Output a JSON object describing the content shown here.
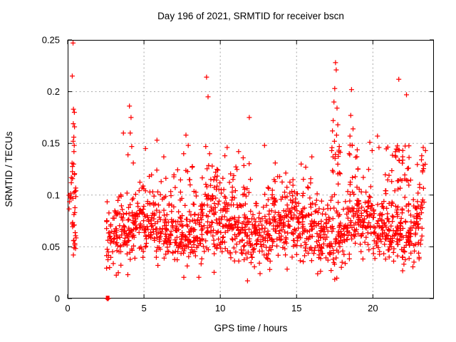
{
  "page": {
    "background": "#ffffff"
  },
  "chart_data": {
    "type": "scatter",
    "title": "Day 196 of 2021, SRMTID for receiver bscn",
    "xlabel": "GPS time / hours",
    "ylabel": "SRMTID / TECUs",
    "xlim": [
      0,
      24
    ],
    "ylim": [
      0,
      0.25
    ],
    "xticks": [
      0,
      5,
      10,
      15,
      20
    ],
    "xtick_labels": [
      "0",
      "5",
      "10",
      "15",
      "20"
    ],
    "yticks": [
      0,
      0.05,
      0.1,
      0.15,
      0.2,
      0.25
    ],
    "ytick_labels": [
      "0",
      "0.05",
      "0.1",
      "0.15",
      "0.2",
      "0.25"
    ],
    "grid": {
      "show": true,
      "color": "#a8a8a8",
      "dash": [
        2,
        3.5
      ]
    },
    "axis_color": "#000000",
    "marker": {
      "shape": "plus",
      "color": "#ff0000",
      "size": 7,
      "stroke_width": 1.25
    },
    "points_notable": [
      [
        0.35,
        0.247
      ],
      [
        0.3,
        0.215
      ],
      [
        0.38,
        0.183
      ],
      [
        0.44,
        0.18
      ],
      [
        0.37,
        0.169
      ],
      [
        0.45,
        0.166
      ],
      [
        0.4,
        0.156
      ],
      [
        0.36,
        0.152
      ],
      [
        0.43,
        0.148
      ],
      [
        0.41,
        0.142
      ],
      [
        0.39,
        0.13
      ],
      [
        3.65,
        0.16
      ],
      [
        4.05,
        0.186
      ],
      [
        4.15,
        0.175
      ],
      [
        4.1,
        0.16
      ],
      [
        4.2,
        0.147
      ],
      [
        3.95,
        0.139
      ],
      [
        4.3,
        0.131
      ],
      [
        5.1,
        0.145
      ],
      [
        5.85,
        0.153
      ],
      [
        6.3,
        0.137
      ],
      [
        7.75,
        0.158
      ],
      [
        7.9,
        0.148
      ],
      [
        7.6,
        0.14
      ],
      [
        9.1,
        0.214
      ],
      [
        9.2,
        0.195
      ],
      [
        9.05,
        0.147
      ],
      [
        9.3,
        0.14
      ],
      [
        10.45,
        0.146
      ],
      [
        10.3,
        0.138
      ],
      [
        11.2,
        0.142
      ],
      [
        11.5,
        0.136
      ],
      [
        11.9,
        0.175
      ],
      [
        12.9,
        0.148
      ],
      [
        13.6,
        0.131
      ],
      [
        15.3,
        0.13
      ],
      [
        15.6,
        0.127
      ],
      [
        16.0,
        0.137
      ],
      [
        17.55,
        0.228
      ],
      [
        17.6,
        0.221
      ],
      [
        17.5,
        0.203
      ],
      [
        17.45,
        0.19
      ],
      [
        17.65,
        0.184
      ],
      [
        17.4,
        0.172
      ],
      [
        17.7,
        0.168
      ],
      [
        17.35,
        0.162
      ],
      [
        17.62,
        0.158
      ],
      [
        17.48,
        0.152
      ],
      [
        17.8,
        0.147
      ],
      [
        17.3,
        0.143
      ],
      [
        18.6,
        0.202
      ],
      [
        18.55,
        0.177
      ],
      [
        18.7,
        0.164
      ],
      [
        18.5,
        0.157
      ],
      [
        18.65,
        0.148
      ],
      [
        19.8,
        0.151
      ],
      [
        19.95,
        0.143
      ],
      [
        20.3,
        0.157
      ],
      [
        20.4,
        0.146
      ],
      [
        21.7,
        0.212
      ],
      [
        22.2,
        0.197
      ],
      [
        23.3,
        0.146
      ],
      [
        23.45,
        0.143
      ],
      [
        23.2,
        0.138
      ]
    ],
    "points_zero": [
      [
        2.58,
        0
      ],
      [
        2.61,
        0
      ],
      [
        2.63,
        0
      ],
      [
        2.66,
        0
      ]
    ],
    "cluster_boxes": [
      {
        "x0": 0.28,
        "x1": 0.55,
        "y0": 0.042,
        "y1": 0.132,
        "n": 30
      },
      {
        "x0": 0.05,
        "x1": 0.25,
        "y0": 0.085,
        "y1": 0.125,
        "n": 8
      },
      {
        "x0": 4.6,
        "x1": 8.2,
        "y0": 0.098,
        "y1": 0.128,
        "n": 22
      },
      {
        "x0": 9.0,
        "x1": 12.2,
        "y0": 0.1,
        "y1": 0.132,
        "n": 28
      },
      {
        "x0": 13.0,
        "x1": 15.8,
        "y0": 0.096,
        "y1": 0.124,
        "n": 18
      },
      {
        "x0": 17.3,
        "x1": 17.95,
        "y0": 0.115,
        "y1": 0.158,
        "n": 14
      },
      {
        "x0": 18.4,
        "x1": 19.1,
        "y0": 0.11,
        "y1": 0.15,
        "n": 12
      },
      {
        "x0": 20.8,
        "x1": 22.5,
        "y0": 0.1,
        "y1": 0.148,
        "n": 40
      },
      {
        "x0": 22.9,
        "x1": 23.45,
        "y0": 0.092,
        "y1": 0.14,
        "n": 14
      }
    ],
    "dense_band_model": {
      "x0": 2.55,
      "x1": 23.25,
      "n": 1450,
      "base": 0.068,
      "spread": 0.016,
      "min": 0.015,
      "max": 0.135,
      "wave_amp": 0.007,
      "wave_period": 4.8,
      "wave_phase": 1.2,
      "seed": 196
    }
  }
}
